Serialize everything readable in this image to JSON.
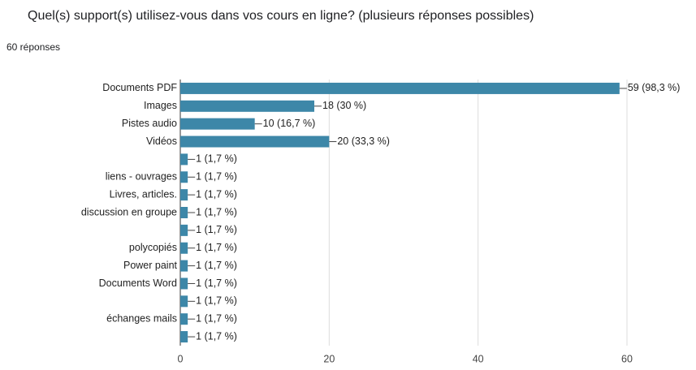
{
  "chart_data": {
    "type": "bar",
    "orientation": "horizontal",
    "title": "Quel(s) support(s) utilisez-vous dans vos cours en ligne? (plusieurs réponses possibles)",
    "subtitle": "60 réponses",
    "categories": [
      "Documents PDF",
      "Images",
      "Pistes audio",
      "Vidéos",
      null,
      "liens - ouvrages",
      "Livres, articles.",
      "discussion en groupe",
      null,
      "polycopiés",
      "Power paint",
      "Documents Word",
      null,
      "échanges mails",
      null
    ],
    "values": [
      59,
      18,
      10,
      20,
      1,
      1,
      1,
      1,
      1,
      1,
      1,
      1,
      1,
      1,
      1
    ],
    "value_labels": [
      "59 (98,3 %)",
      "18 (30 %)",
      "10 (16,7 %)",
      "20 (33,3 %)",
      "1 (1,7 %)",
      "1 (1,7 %)",
      "1 (1,7 %)",
      "1 (1,7 %)",
      "1 (1,7 %)",
      "1 (1,7 %)",
      "1 (1,7 %)",
      "1 (1,7 %)",
      "1 (1,7 %)",
      "1 (1,7 %)",
      "1 (1,7 %)"
    ],
    "color": "#3d87a8",
    "xlim": [
      0,
      60
    ],
    "xticks": [
      0,
      20,
      40,
      60
    ],
    "grid": true
  }
}
